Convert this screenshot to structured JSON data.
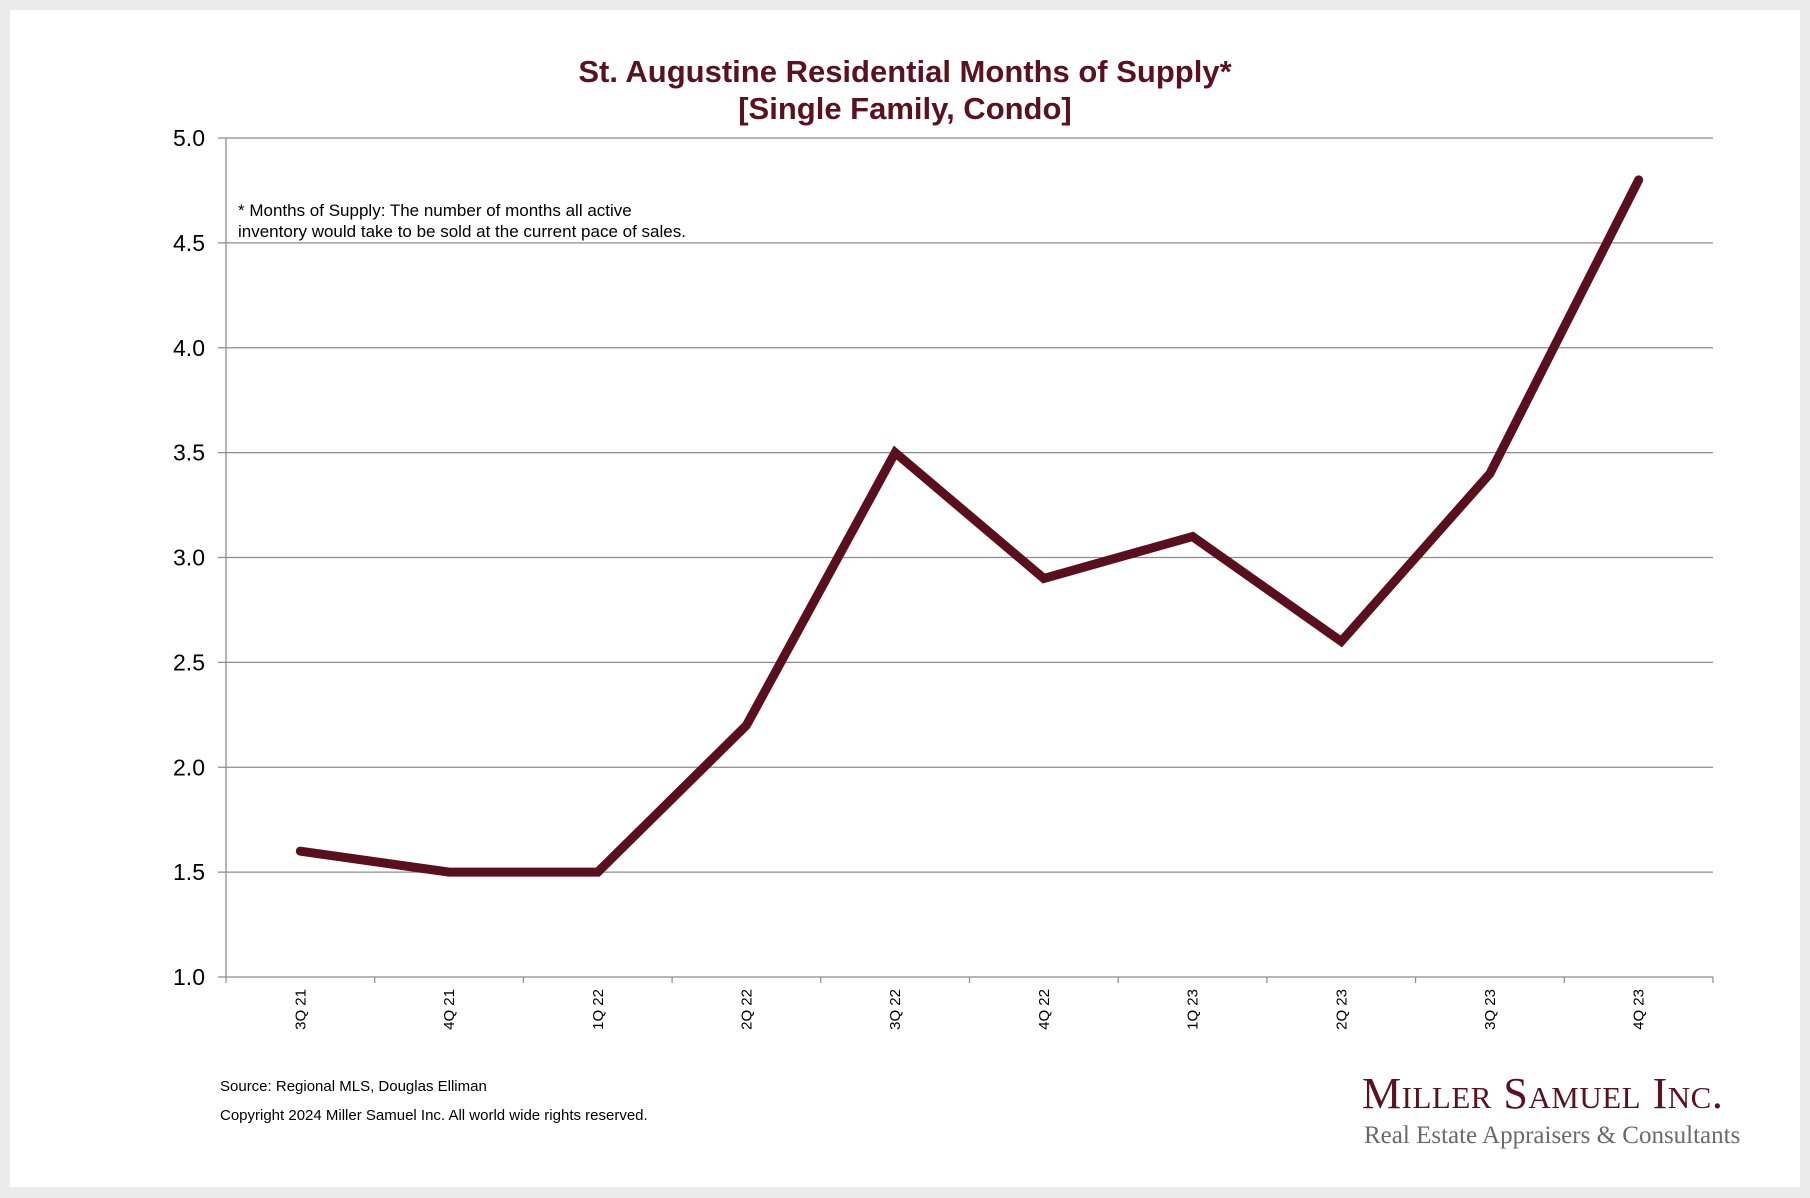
{
  "chart_data": {
    "type": "line",
    "title": "St. Augustine Residential Months of Supply*",
    "subtitle": "[Single Family, Condo]",
    "xlabel": "",
    "ylabel": "",
    "categories": [
      "3Q 21",
      "4Q 21",
      "1Q 22",
      "2Q 22",
      "3Q 22",
      "4Q 22",
      "1Q 23",
      "2Q 23",
      "3Q 23",
      "4Q 23"
    ],
    "series": [
      {
        "name": "Months of Supply",
        "values": [
          1.6,
          1.5,
          1.5,
          2.2,
          3.5,
          2.9,
          3.1,
          2.6,
          3.4,
          4.8
        ],
        "color": "#5a0f1e"
      }
    ],
    "ylim": [
      1.0,
      5.0
    ],
    "yticks": [
      "1.0",
      "1.5",
      "2.0",
      "2.5",
      "3.0",
      "3.5",
      "4.0",
      "4.5",
      "5.0"
    ],
    "grid": true,
    "legend": "none",
    "annotation": {
      "line1": "* Months of Supply: The number of months all active",
      "line2": "inventory would take to be sold at the current pace of sales."
    }
  },
  "footer": {
    "source": "Source: Regional MLS, Douglas Elliman",
    "copyright": "Copyright 2024 Miller Samuel Inc.  All world wide rights reserved."
  },
  "logo": {
    "name": "Miller Samuel Inc.",
    "tagline": "Real Estate Appraisers & Consultants"
  },
  "colors": {
    "title": "#5a1220",
    "line": "#5a0f1e",
    "grid": "#8c8c8c",
    "background": "#ebebeb"
  }
}
